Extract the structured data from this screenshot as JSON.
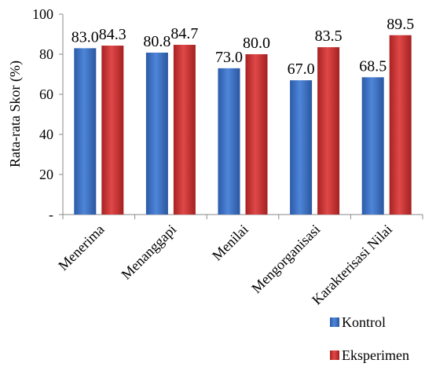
{
  "chart_data": {
    "type": "bar",
    "title": "",
    "xlabel": "",
    "ylabel": "Rata-rata Skor (%)",
    "ylim": [
      0,
      100
    ],
    "yticks": [
      0,
      20,
      40,
      60,
      80,
      100
    ],
    "ytick_labels": [
      "-",
      "20",
      "40",
      "60",
      "80",
      "100"
    ],
    "grid": false,
    "legend_position": "bottom-right",
    "categories": [
      "Menerima",
      "Menanggapi",
      "Menilai",
      "Mengorganisasi",
      "Karakterisasi Nilai"
    ],
    "series": [
      {
        "name": "Kontrol",
        "color": "#3a6fc4",
        "values": [
          83.0,
          80.8,
          73.0,
          67.0,
          68.5
        ],
        "labels": [
          "83.0",
          "80.8",
          "73.0",
          "67.0",
          "68.5"
        ]
      },
      {
        "name": "Eksperimen",
        "color": "#c83434",
        "values": [
          84.3,
          84.7,
          80.0,
          83.5,
          89.5
        ],
        "labels": [
          "84.3",
          "84.7",
          "80.0",
          "83.5",
          "89.5"
        ]
      }
    ]
  }
}
